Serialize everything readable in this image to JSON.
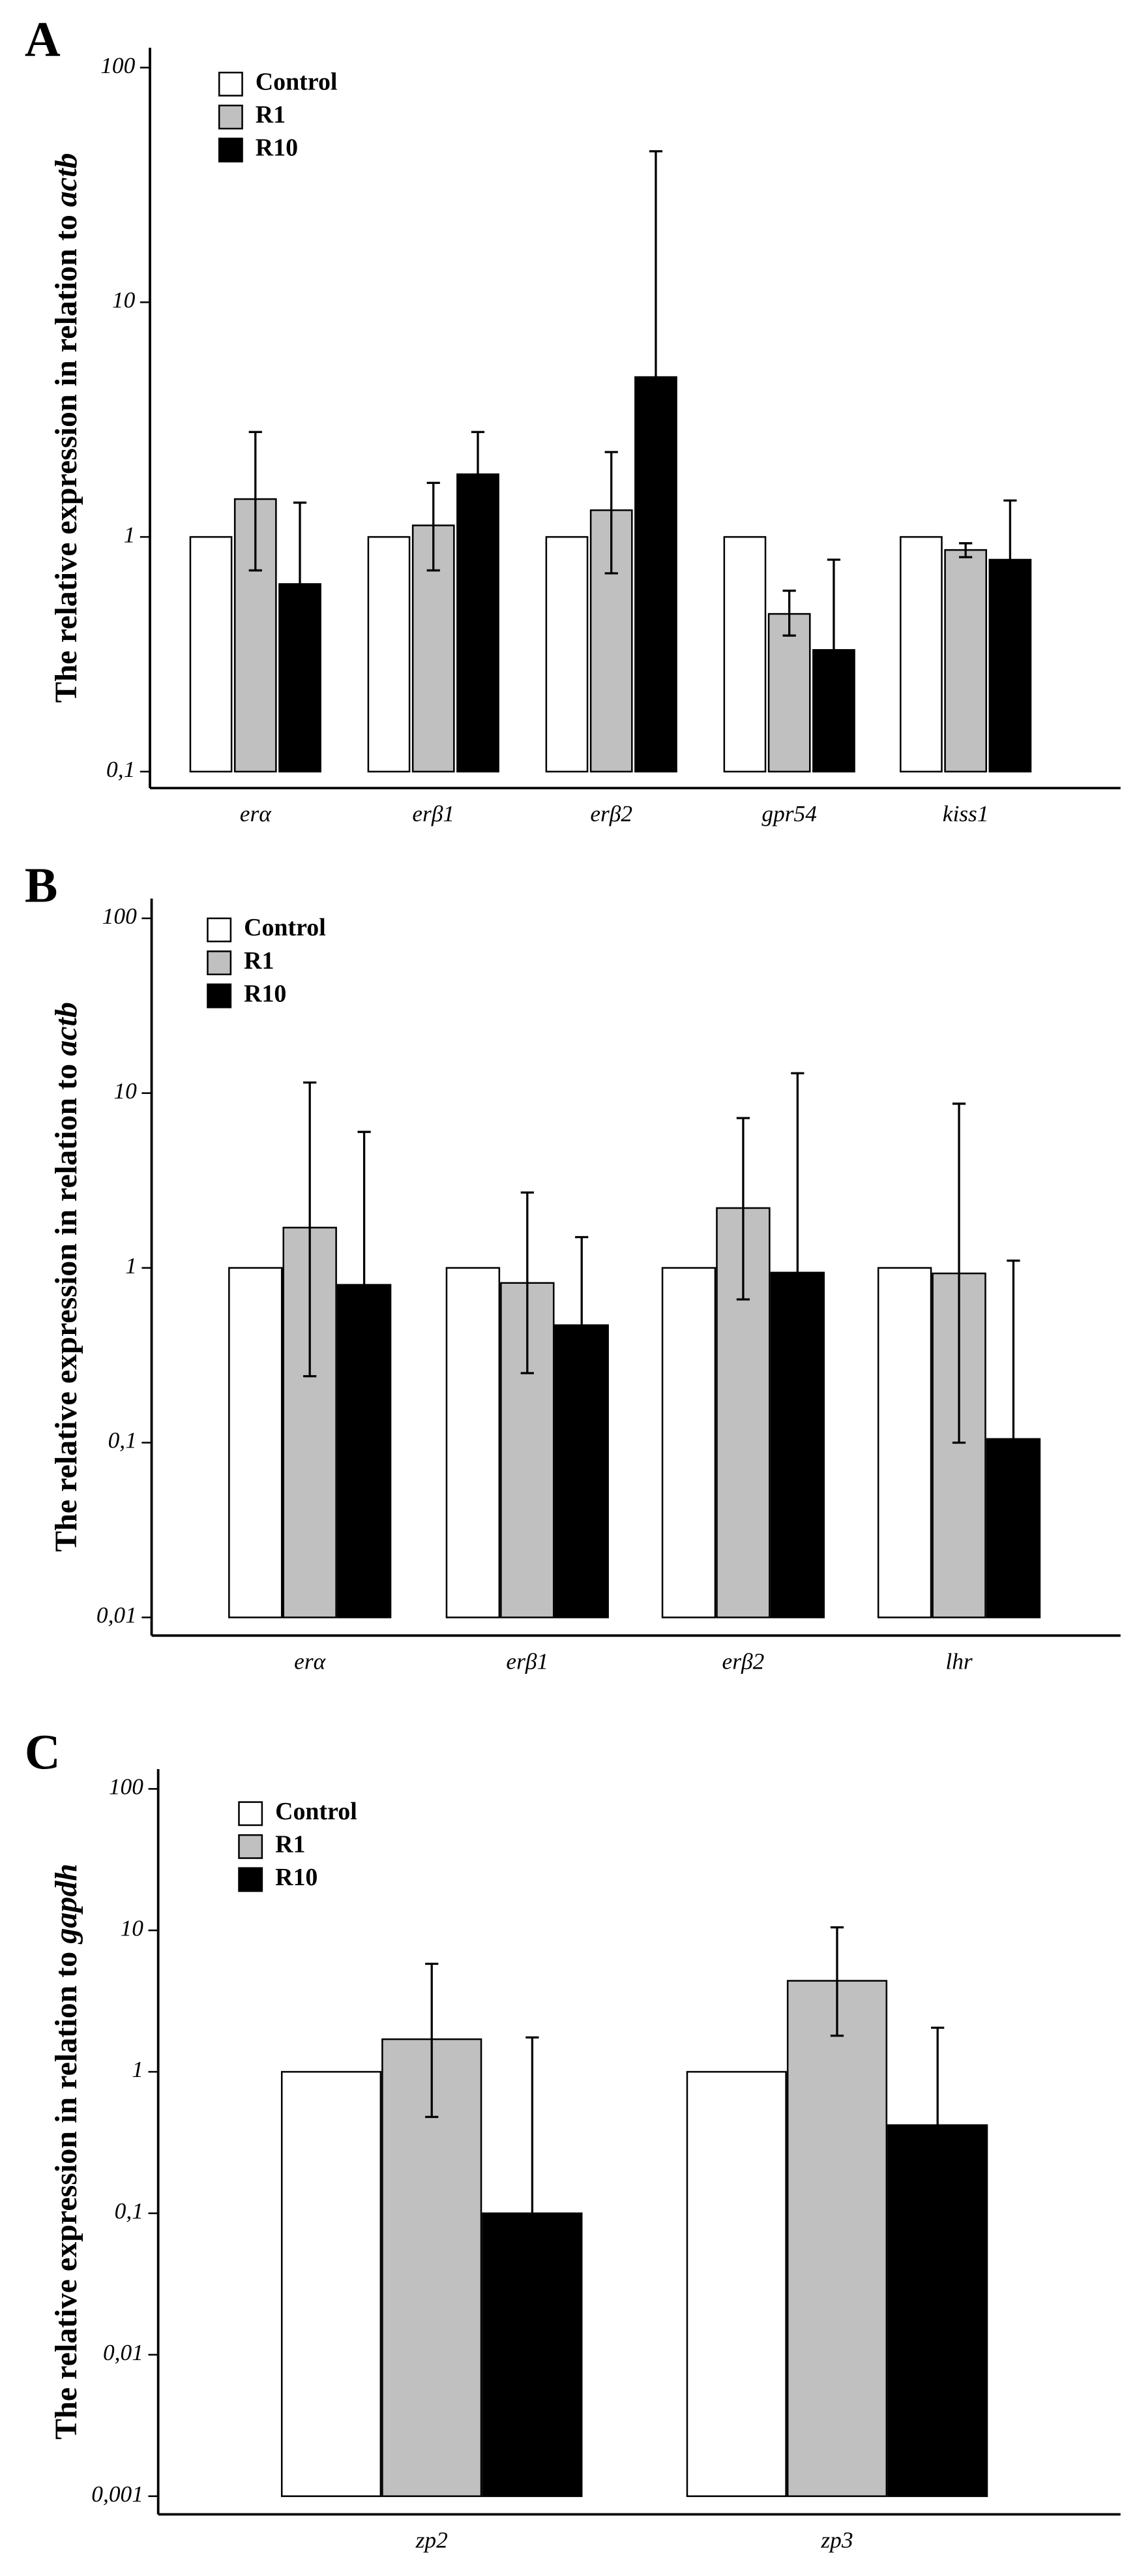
{
  "chart_data": [
    {
      "type": "bar",
      "panel": "A",
      "ylabel": "The relative expression in relation to ",
      "ylabel_gene": "actb",
      "log": true,
      "categories": [
        "erα",
        "erβ1",
        "erβ2",
        "gpr54",
        "kiss1"
      ],
      "ylim": [
        0.1,
        100
      ],
      "yticks": [
        {
          "value": 0.1,
          "label": "0,1"
        },
        1,
        10,
        100
      ],
      "series": [
        {
          "name": "Control",
          "color": "#ffffff",
          "values": [
            1,
            1,
            1,
            1,
            1
          ],
          "error_high": [
            null,
            null,
            null,
            null,
            null
          ],
          "error_low": [
            null,
            null,
            null,
            null,
            null
          ]
        },
        {
          "name": "R1",
          "color": "#c0c0c0",
          "values": [
            1.45,
            1.12,
            1.3,
            0.47,
            0.88
          ],
          "error_high": [
            2.8,
            1.7,
            2.3,
            0.59,
            0.94
          ],
          "error_low": [
            0.72,
            0.72,
            0.7,
            0.38,
            0.82
          ]
        },
        {
          "name": "R10",
          "color": "#000000",
          "values": [
            0.63,
            1.85,
            4.8,
            0.33,
            0.8
          ],
          "error_high": [
            1.4,
            2.8,
            44,
            0.8,
            1.43
          ],
          "error_low": [
            null,
            null,
            null,
            null,
            null
          ]
        }
      ]
    },
    {
      "type": "bar",
      "panel": "B",
      "ylabel": "The relative expression in relation to ",
      "ylabel_gene": "actb",
      "log": true,
      "categories": [
        "erα",
        "erβ1",
        "erβ2",
        "lhr"
      ],
      "ylim": [
        0.01,
        100
      ],
      "yticks": [
        {
          "value": 0.01,
          "label": "0,01"
        },
        {
          "value": 0.1,
          "label": "0,1"
        },
        1,
        10,
        100
      ],
      "series": [
        {
          "name": "Control",
          "color": "#ffffff",
          "values": [
            1,
            1,
            1,
            1
          ],
          "error_high": [
            null,
            null,
            null,
            null
          ],
          "error_low": [
            null,
            null,
            null,
            null
          ]
        },
        {
          "name": "R1",
          "color": "#c0c0c0",
          "values": [
            1.7,
            0.82,
            2.2,
            0.93
          ],
          "error_high": [
            11.5,
            2.7,
            7.2,
            8.7
          ],
          "error_low": [
            0.24,
            0.25,
            0.66,
            0.1
          ]
        },
        {
          "name": "R10",
          "color": "#000000",
          "values": [
            0.8,
            0.47,
            0.94,
            0.105
          ],
          "error_high": [
            6,
            1.5,
            13,
            1.1
          ],
          "error_low": [
            null,
            null,
            null,
            null
          ]
        }
      ]
    },
    {
      "type": "bar",
      "panel": "C",
      "ylabel": "The relative expression in relation to ",
      "ylabel_gene": "gapdh",
      "log": true,
      "categories": [
        "zp2",
        "zp3"
      ],
      "ylim": [
        0.001,
        100
      ],
      "yticks": [
        {
          "value": 0.001,
          "label": "0,001"
        },
        {
          "value": 0.01,
          "label": "0,01"
        },
        {
          "value": 0.1,
          "label": "0,1"
        },
        1,
        10,
        100
      ],
      "series": [
        {
          "name": "Control",
          "color": "#ffffff",
          "values": [
            1,
            1
          ],
          "error_high": [
            null,
            null
          ],
          "error_low": [
            null,
            null
          ]
        },
        {
          "name": "R1",
          "color": "#c0c0c0",
          "values": [
            1.7,
            4.4
          ],
          "error_high": [
            5.8,
            10.5
          ],
          "error_low": [
            0.48,
            1.8
          ]
        },
        {
          "name": "R10",
          "color": "#000000",
          "values": [
            0.1,
            0.42
          ],
          "error_high": [
            1.75,
            2.05
          ],
          "error_low": [
            null,
            null
          ]
        }
      ]
    }
  ]
}
